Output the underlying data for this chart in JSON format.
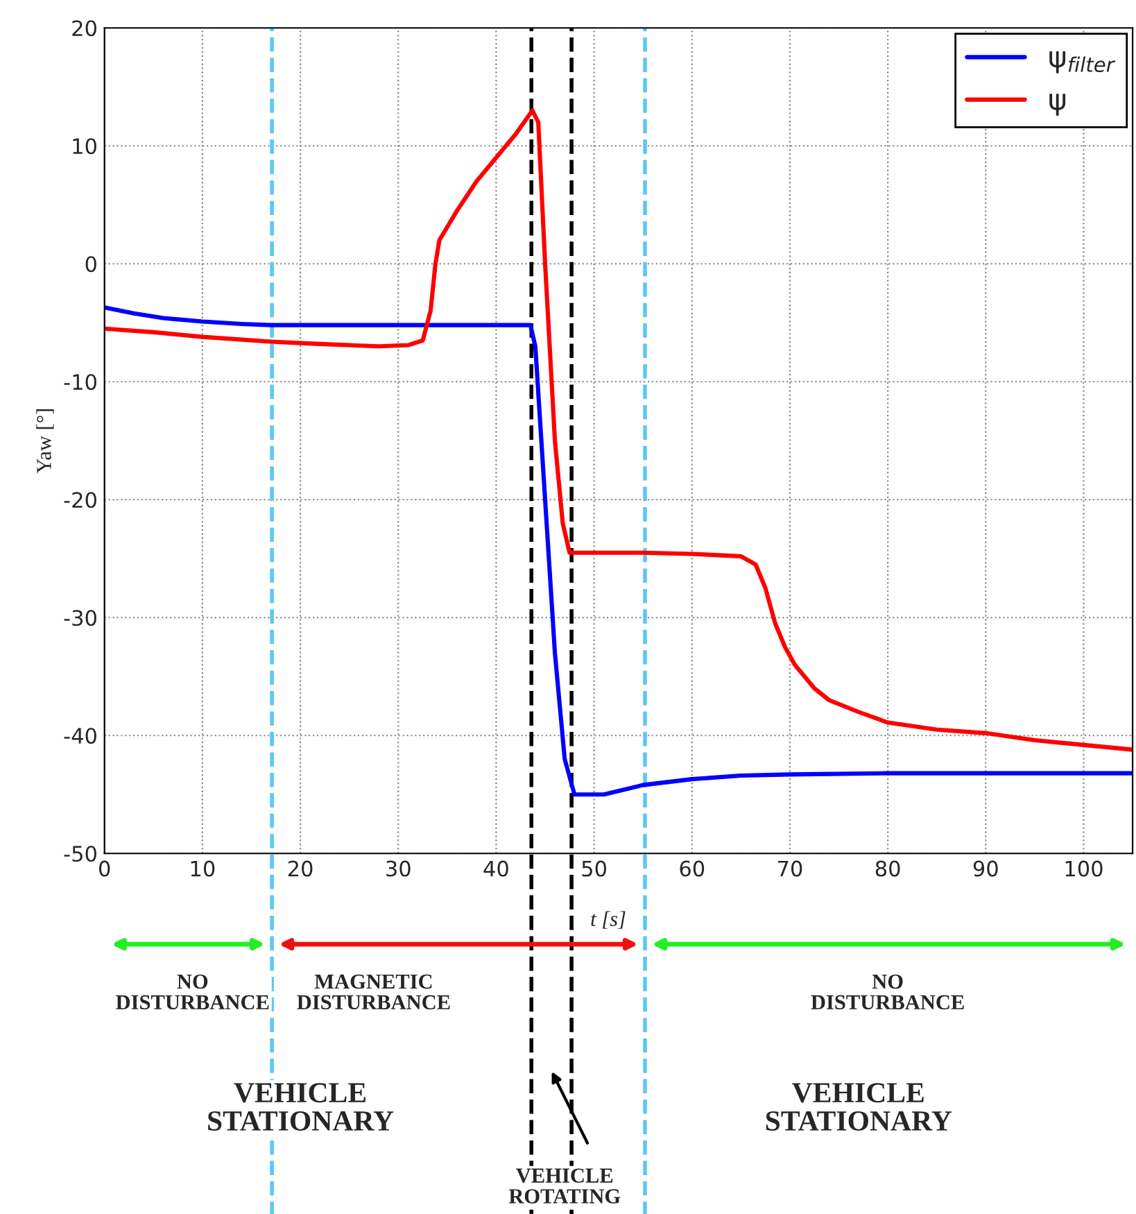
{
  "chart_data": {
    "type": "line",
    "xlabel": "t [s]",
    "ylabel": "Yaw [°]",
    "xlim": [
      0,
      105
    ],
    "ylim": [
      -50,
      20
    ],
    "xticks": [
      0,
      10,
      20,
      30,
      40,
      50,
      60,
      70,
      80,
      90,
      100
    ],
    "yticks": [
      -50,
      -40,
      -30,
      -20,
      -10,
      0,
      10,
      20
    ],
    "grid": true,
    "legend": "top right",
    "line_style": "solid",
    "marker": "none",
    "series": [
      {
        "name": "ψ$_{filter}$",
        "color": "#0000ff",
        "x": [
          0,
          3,
          6,
          10,
          14,
          17,
          25,
          35,
          43.5,
          44,
          45,
          46,
          47,
          48,
          49,
          51,
          53,
          55,
          60,
          65,
          70,
          80,
          90,
          105
        ],
        "values": [
          -3.7,
          -4.2,
          -4.6,
          -4.9,
          -5.1,
          -5.2,
          -5.2,
          -5.2,
          -5.2,
          -7,
          -20,
          -33,
          -42,
          -45,
          -45,
          -45,
          -44.6,
          -44.2,
          -43.7,
          -43.4,
          -43.3,
          -43.2,
          -43.2,
          -43.2
        ]
      },
      {
        "name": "ψ",
        "color": "#ff0000",
        "x": [
          0,
          5,
          10,
          17,
          22,
          28,
          31,
          32.5,
          33.3,
          33.8,
          34.2,
          36,
          38,
          40,
          42,
          43.7,
          44.3,
          45,
          46,
          46.8,
          47.5,
          50,
          55,
          60,
          65,
          66.5,
          67.5,
          68.5,
          69.5,
          70.5,
          71.5,
          72.5,
          74,
          77,
          80,
          85,
          90,
          95,
          100,
          105
        ],
        "values": [
          -5.5,
          -5.8,
          -6.2,
          -6.6,
          -6.8,
          -7,
          -6.9,
          -6.5,
          -4,
          0,
          2,
          4.5,
          7,
          9,
          11,
          13,
          12,
          0,
          -15,
          -22,
          -24.5,
          -24.5,
          -24.5,
          -24.6,
          -24.8,
          -25.5,
          -27.5,
          -30.5,
          -32.5,
          -34,
          -35,
          -36,
          -37,
          -38,
          -38.9,
          -39.5,
          -39.8,
          -40.4,
          -40.8,
          -41.2
        ]
      }
    ],
    "ref_lines": [
      {
        "axis": "x",
        "value": 17.1,
        "color": "#5bc8f5",
        "line_style": "dashed"
      },
      {
        "axis": "x",
        "value": 55.2,
        "color": "#5bc8f5",
        "line_style": "dashed"
      },
      {
        "axis": "x",
        "value": 43.6,
        "color": "#000000",
        "line_style": "dashed"
      },
      {
        "axis": "x",
        "value": 47.7,
        "color": "#000000",
        "line_style": "dashed"
      }
    ],
    "annotations": [
      "NO\nDISTURBANCE",
      "MAGNETIC\nDISTURBANCE",
      "NO\nDISTURBANCE",
      "VEHICLE\nSTATIONARY",
      "VEHICLE\nSTATIONARY",
      "VEHICLE\nROTATING"
    ]
  }
}
